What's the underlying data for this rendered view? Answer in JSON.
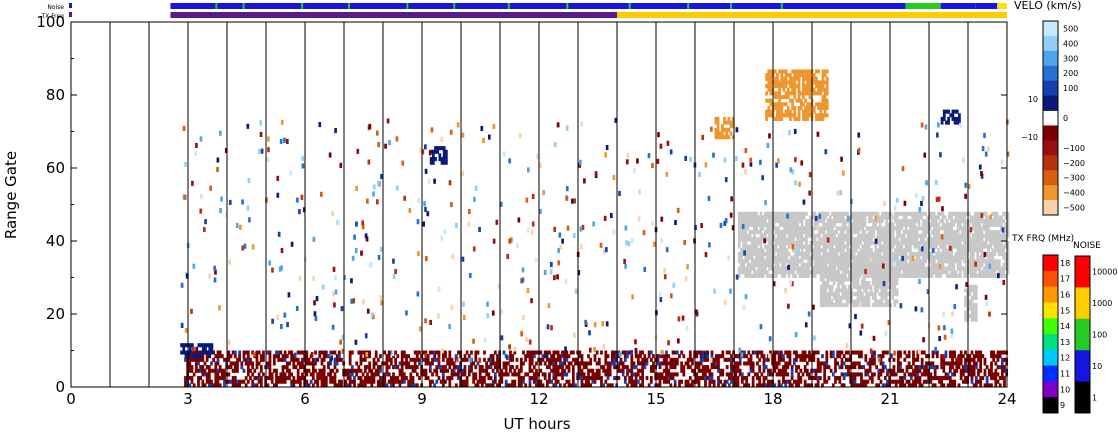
{
  "chart_data": {
    "type": "heatmap",
    "xlabel": "UT hours",
    "ylabel": "Range Gate",
    "xlim": [
      0,
      24
    ],
    "ylim": [
      0,
      100
    ],
    "xticks": [
      0,
      3,
      6,
      9,
      12,
      15,
      18,
      21,
      24
    ],
    "yticks": [
      0,
      20,
      40,
      60,
      80,
      100
    ],
    "hour_grid": true,
    "top_bars": [
      {
        "label": "Noise",
        "segments": [
          {
            "from": 2.55,
            "to": 21.4,
            "color": "#1515e0"
          },
          {
            "from": 21.4,
            "to": 22.3,
            "color": "#22cc22"
          },
          {
            "from": 22.3,
            "to": 23.2,
            "color": "#1515e0"
          },
          {
            "from": 23.2,
            "to": 23.75,
            "color": "#1515e0"
          },
          {
            "from": 23.75,
            "to": 24.0,
            "color": "#ffe000"
          }
        ]
      },
      {
        "label": "TX Freq",
        "segments": [
          {
            "from": 2.55,
            "to": 14.0,
            "color": "#5a1a8c"
          },
          {
            "from": 14.0,
            "to": 24.0,
            "color": "#ffcc00"
          }
        ]
      }
    ],
    "velocity_scale": {
      "title": "VELO (km/s)",
      "ticks": [
        "500",
        "400",
        "300",
        "200",
        "100",
        "10",
        "0",
        "−10",
        "−100",
        "−200",
        "−300",
        "−400",
        "−500"
      ],
      "colors": [
        "#c6eafc",
        "#8fd0f5",
        "#4ea6ea",
        "#2a6fd6",
        "#1640b0",
        "#0b1a78",
        "#ffffff",
        "#7a0000",
        "#9a1010",
        "#b83010",
        "#d85e10",
        "#f0962e",
        "#f9d2a8"
      ]
    },
    "tx_freq_scale": {
      "title": "TX FRQ (MHz)",
      "ticks": [
        "18",
        "17",
        "16",
        "15",
        "14",
        "13",
        "12",
        "11",
        "10",
        "9"
      ],
      "colors": [
        "#ff0000",
        "#ff5000",
        "#ff9800",
        "#ffe000",
        "#40ff00",
        "#00e080",
        "#00c8ff",
        "#0030ff",
        "#8000c8",
        "#000000"
      ]
    },
    "noise_scale": {
      "title": "NOISE",
      "ticks": [
        "10000",
        "1000",
        "100",
        "10",
        "1"
      ],
      "colors": [
        "#ff0000",
        "#ffcc00",
        "#22cc22",
        "#1515e0",
        "#000000"
      ]
    },
    "series": [
      {
        "name": "ground scatter",
        "color": "#c8c8c8",
        "regions": [
          {
            "t0": 17.1,
            "t1": 24.0,
            "g0": 30,
            "g1": 48
          },
          {
            "t0": 19.2,
            "t1": 21.2,
            "g0": 22,
            "g1": 36
          },
          {
            "t0": 22.9,
            "t1": 23.2,
            "g0": 18,
            "g1": 28
          }
        ]
      },
      {
        "name": "low range backscatter",
        "color": "#7a0000",
        "regions": [
          {
            "t0": 2.9,
            "t1": 24.0,
            "g0": 0,
            "g1": 10
          }
        ]
      },
      {
        "name": "E-region patch",
        "color": "#0b1a78",
        "regions": [
          {
            "t0": 2.8,
            "t1": 3.6,
            "g0": 8,
            "g1": 12
          },
          {
            "t0": 22.3,
            "t1": 22.75,
            "g0": 72,
            "g1": 76
          },
          {
            "t0": 9.2,
            "t1": 9.6,
            "g0": 61,
            "g1": 66
          }
        ]
      },
      {
        "name": "far range echoes",
        "color": "#f0962e",
        "regions": [
          {
            "t0": 16.5,
            "t1": 17.0,
            "g0": 68,
            "g1": 74
          },
          {
            "t0": 17.8,
            "t1": 19.4,
            "g0": 73,
            "g1": 87
          }
        ]
      }
    ]
  }
}
